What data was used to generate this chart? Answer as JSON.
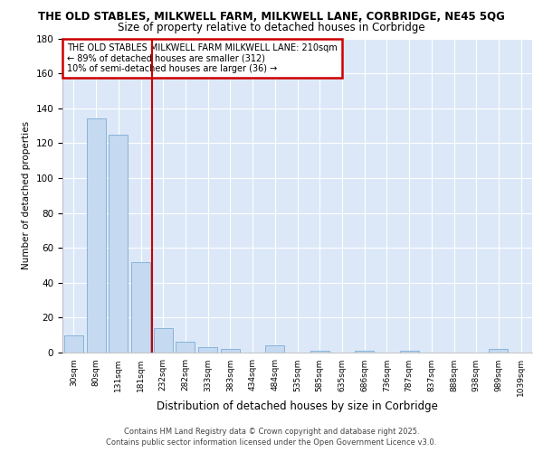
{
  "title_line1": "THE OLD STABLES, MILKWELL FARM, MILKWELL LANE, CORBRIDGE, NE45 5QG",
  "title_line2": "Size of property relative to detached houses in Corbridge",
  "xlabel": "Distribution of detached houses by size in Corbridge",
  "ylabel": "Number of detached properties",
  "categories": [
    "30sqm",
    "80sqm",
    "131sqm",
    "181sqm",
    "232sqm",
    "282sqm",
    "333sqm",
    "383sqm",
    "434sqm",
    "484sqm",
    "535sqm",
    "585sqm",
    "635sqm",
    "686sqm",
    "736sqm",
    "787sqm",
    "837sqm",
    "888sqm",
    "938sqm",
    "989sqm",
    "1039sqm"
  ],
  "values": [
    10,
    134,
    125,
    52,
    14,
    6,
    3,
    2,
    0,
    4,
    0,
    1,
    0,
    1,
    0,
    1,
    0,
    0,
    0,
    2,
    0
  ],
  "bar_color": "#c5d9f0",
  "bar_edge_color": "#7badd4",
  "vline_x": 3.5,
  "vline_color": "#cc0000",
  "annotation_text": "THE OLD STABLES MILKWELL FARM MILKWELL LANE: 210sqm\n← 89% of detached houses are smaller (312)\n10% of semi-detached houses are larger (36) →",
  "annotation_box_facecolor": "#ffffff",
  "annotation_box_edgecolor": "#cc0000",
  "ylim": [
    0,
    180
  ],
  "yticks": [
    0,
    20,
    40,
    60,
    80,
    100,
    120,
    140,
    160,
    180
  ],
  "fig_bg_color": "#ffffff",
  "plot_bg_color": "#dce8f8",
  "grid_color": "#ffffff",
  "footer_line1": "Contains HM Land Registry data © Crown copyright and database right 2025.",
  "footer_line2": "Contains public sector information licensed under the Open Government Licence v3.0."
}
